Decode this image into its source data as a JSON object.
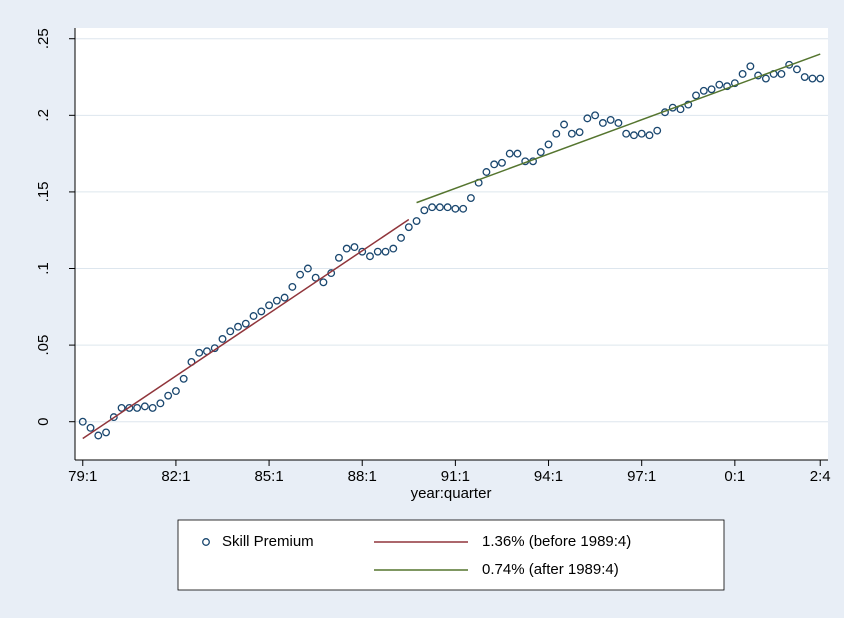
{
  "chart_data": {
    "type": "scatter",
    "x_label": "year:quarter",
    "xlim": [
      75,
      172
    ],
    "xticks": [
      {
        "value": 76,
        "label": "79:1"
      },
      {
        "value": 88,
        "label": "82:1"
      },
      {
        "value": 100,
        "label": "85:1"
      },
      {
        "value": 112,
        "label": "88:1"
      },
      {
        "value": 124,
        "label": "91:1"
      },
      {
        "value": 136,
        "label": "94:1"
      },
      {
        "value": 148,
        "label": "97:1"
      },
      {
        "value": 160,
        "label": "0:1"
      },
      {
        "value": 171,
        "label": "2:4"
      }
    ],
    "ylim": [
      -0.025,
      0.257
    ],
    "yticks": [
      0,
      {
        "value": 0.05,
        "label": ".05"
      },
      {
        "value": 0.1,
        "label": ".1"
      },
      {
        "value": 0.15,
        "label": ".15"
      },
      {
        "value": 0.2,
        "label": ".2"
      },
      {
        "value": 0.25,
        "label": ".25"
      }
    ],
    "grid": true,
    "legend": "bottom",
    "series": [
      {
        "name": "Skill Premium",
        "color": "#1a476f",
        "style": "marker",
        "x": [
          76,
          77,
          78,
          79,
          80,
          81,
          82,
          83,
          84,
          85,
          86,
          87,
          88,
          89,
          90,
          91,
          92,
          93,
          94,
          95,
          96,
          97,
          98,
          99,
          100,
          101,
          102,
          103,
          104,
          105,
          106,
          107,
          108,
          109,
          110,
          111,
          112,
          113,
          114,
          115,
          116,
          117,
          118,
          119,
          120,
          121,
          122,
          123,
          124,
          125,
          126,
          127,
          128,
          129,
          130,
          131,
          132,
          133,
          134,
          135,
          136,
          137,
          138,
          139,
          140,
          141,
          142,
          143,
          144,
          145,
          146,
          147,
          148,
          149,
          150,
          151,
          152,
          153,
          154,
          155,
          156,
          157,
          158,
          159,
          160,
          161,
          162,
          163,
          164,
          165,
          166,
          167,
          168,
          169,
          170,
          171
        ],
        "values": [
          0.0,
          -0.004,
          -0.009,
          -0.007,
          0.003,
          0.009,
          0.009,
          0.009,
          0.01,
          0.009,
          0.012,
          0.017,
          0.02,
          0.028,
          0.039,
          0.045,
          0.046,
          0.048,
          0.054,
          0.059,
          0.062,
          0.064,
          0.069,
          0.072,
          0.076,
          0.079,
          0.081,
          0.088,
          0.096,
          0.1,
          0.094,
          0.091,
          0.097,
          0.107,
          0.113,
          0.114,
          0.111,
          0.108,
          0.111,
          0.111,
          0.113,
          0.12,
          0.127,
          0.131,
          0.138,
          0.14,
          0.14,
          0.14,
          0.139,
          0.139,
          0.146,
          0.156,
          0.163,
          0.168,
          0.169,
          0.175,
          0.175,
          0.17,
          0.17,
          0.176,
          0.181,
          0.188,
          0.194,
          0.188,
          0.189,
          0.198,
          0.2,
          0.195,
          0.197,
          0.195,
          0.188,
          0.187,
          0.188,
          0.187,
          0.19,
          0.202,
          0.205,
          0.204,
          0.207,
          0.213,
          0.216,
          0.217,
          0.22,
          0.219,
          0.221,
          0.227,
          0.232,
          0.226,
          0.224,
          0.227,
          0.227,
          0.233,
          0.23,
          0.225,
          0.224,
          0.224
        ]
      },
      {
        "name": "1.36% (before 1989:4)",
        "color": "#90353b",
        "style": "line",
        "x": [
          76,
          118
        ],
        "values": [
          -0.011,
          0.132
        ]
      },
      {
        "name": "0.74% (after 1989:4)",
        "color": "#55752f",
        "style": "line",
        "x": [
          119,
          171
        ],
        "values": [
          0.143,
          0.24
        ]
      }
    ]
  }
}
